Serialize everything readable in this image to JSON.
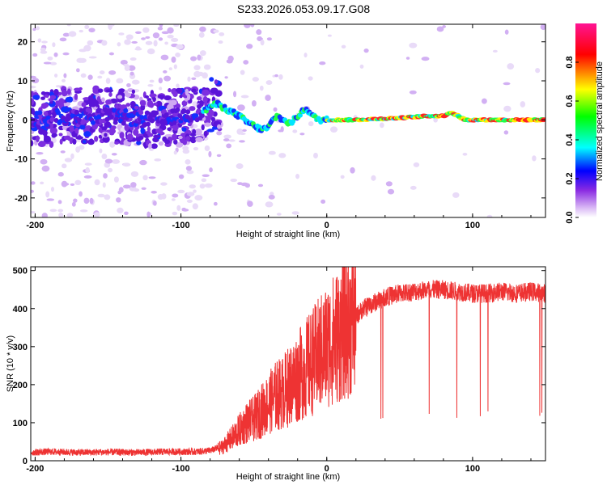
{
  "title": "S233.2026.053.09.17.G08",
  "chart_data": [
    {
      "type": "heatmap",
      "xlabel": "Height of straight line (km)",
      "ylabel": "Frequency (Hz)",
      "xlim": [
        -203,
        150
      ],
      "ylim": [
        -25,
        24.5
      ],
      "xticks": [
        -200,
        -100,
        0,
        100
      ],
      "yticks": [
        20,
        10,
        0,
        -10,
        -20
      ],
      "xtick_labels": [
        "-200",
        "-100",
        "0",
        "100"
      ],
      "ytick_labels": [
        "20",
        "10",
        "0",
        "-10",
        "-20"
      ],
      "ridge": {
        "x": [
          -203,
          -180,
          -150,
          -120,
          -100,
          -85,
          -80,
          -75,
          -70,
          -65,
          -60,
          -55,
          -50,
          -45,
          -40,
          -37,
          -34,
          -30,
          -25,
          -20,
          -17,
          -14,
          -12,
          -10,
          -5,
          0,
          20,
          50,
          70,
          80,
          85,
          90,
          95,
          100,
          150
        ],
        "y": [
          0,
          1,
          1,
          0,
          1,
          2,
          3.5,
          4,
          3,
          2,
          1,
          -0.5,
          -1.5,
          -2.5,
          -2,
          0,
          1,
          0,
          -1,
          1,
          2,
          3,
          2,
          1,
          0,
          0,
          0,
          0.5,
          1,
          1,
          2,
          1,
          0,
          0,
          0
        ]
      },
      "colorbar": {
        "label": "Normalized spectral amplitude",
        "range": [
          0,
          1
        ],
        "ticks": [
          0.0,
          0.2,
          0.4,
          0.6,
          0.8
        ],
        "tick_labels": [
          "0.0",
          "0.2",
          "0.4",
          "0.6",
          "0.8"
        ],
        "colors": [
          "#ffffff",
          "#8a2be2",
          "#0000ff",
          "#00ffff",
          "#00ff00",
          "#ffff00",
          "#ff0000",
          "#ff1493"
        ]
      }
    },
    {
      "type": "line",
      "xlabel": "Height of straight line (km)",
      "ylabel": "SNR (10 * v/v)",
      "xlim": [
        -203,
        150
      ],
      "ylim": [
        0,
        510
      ],
      "xticks": [
        -200,
        -100,
        0,
        100
      ],
      "yticks": [
        0,
        100,
        200,
        300,
        400,
        500
      ],
      "xtick_labels": [
        "-200",
        "-100",
        "0",
        "100"
      ],
      "ytick_labels": [
        "0",
        "100",
        "200",
        "300",
        "400",
        "500"
      ],
      "series": [
        {
          "name": "SNR",
          "color": "#ee3333",
          "x": [
            -203,
            -190,
            -170,
            -150,
            -130,
            -110,
            -90,
            -80,
            -72,
            -65,
            -60,
            -55,
            -50,
            -45,
            -40,
            -35,
            -30,
            -25,
            -20,
            -15,
            -10,
            -5,
            0,
            5,
            10,
            15,
            20,
            25,
            30,
            40,
            50,
            60,
            70,
            80,
            90,
            100,
            110,
            120,
            130,
            140,
            150
          ],
          "y": [
            20,
            22,
            20,
            21,
            20,
            22,
            22,
            25,
            35,
            60,
            80,
            100,
            110,
            130,
            150,
            170,
            180,
            200,
            220,
            240,
            260,
            280,
            300,
            320,
            340,
            360,
            380,
            400,
            410,
            430,
            440,
            445,
            450,
            450,
            445,
            440,
            440,
            445,
            440,
            445,
            440
          ]
        }
      ]
    }
  ]
}
